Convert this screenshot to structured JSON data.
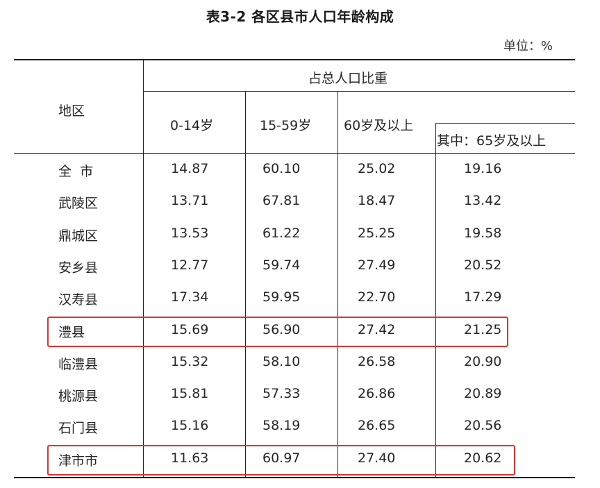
{
  "title": "表3-2  各区县市人口年龄构成",
  "unit": "单位：%",
  "headers": {
    "region": "地区",
    "group": "占总人口比重",
    "c1": "0-14岁",
    "c2": "15-59岁",
    "c3": "60岁及以上",
    "c4": "其中：65岁及以上"
  },
  "rows": [
    {
      "name": "全  市",
      "v": [
        "14.87",
        "60.10",
        "25.02",
        "19.16"
      ],
      "highlight": false
    },
    {
      "name": "武陵区",
      "v": [
        "13.71",
        "67.81",
        "18.47",
        "13.42"
      ],
      "highlight": false
    },
    {
      "name": "鼎城区",
      "v": [
        "13.53",
        "61.22",
        "25.25",
        "19.58"
      ],
      "highlight": false
    },
    {
      "name": "安乡县",
      "v": [
        "12.77",
        "59.74",
        "27.49",
        "20.52"
      ],
      "highlight": false
    },
    {
      "name": "汉寿县",
      "v": [
        "17.34",
        "59.95",
        "22.70",
        "17.29"
      ],
      "highlight": false
    },
    {
      "name": "澧县",
      "v": [
        "15.69",
        "56.90",
        "27.42",
        "21.25"
      ],
      "highlight": true
    },
    {
      "name": "临澧县",
      "v": [
        "15.32",
        "58.10",
        "26.58",
        "20.90"
      ],
      "highlight": false
    },
    {
      "name": "桃源县",
      "v": [
        "15.81",
        "57.33",
        "26.86",
        "20.89"
      ],
      "highlight": false
    },
    {
      "name": "石门县",
      "v": [
        "15.16",
        "58.19",
        "26.65",
        "20.56"
      ],
      "highlight": false
    },
    {
      "name": "津市市",
      "v": [
        "11.63",
        "60.97",
        "27.40",
        "20.62"
      ],
      "highlight": true
    }
  ],
  "colors": {
    "line": "#222222",
    "highlight": "#e0322c"
  }
}
